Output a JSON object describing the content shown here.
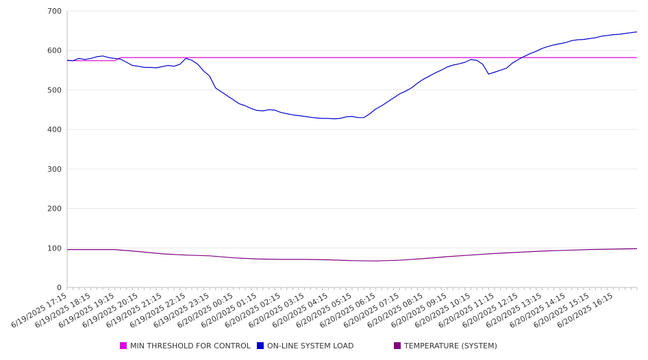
{
  "chart_data": {
    "type": "line",
    "ylim": [
      0,
      700
    ],
    "yticks": [
      0,
      100,
      200,
      300,
      400,
      500,
      600,
      700
    ],
    "xlim": [
      "6/19/2025 17:15",
      "6/20/2025 17:15"
    ],
    "xtick_labels": [
      "6/19/2025 17:15",
      "6/19/2025 18:15",
      "6/19/2025 19:15",
      "6/19/2025 20:15",
      "6/19/2025 21:15",
      "6/19/2025 22:15",
      "6/19/2025 23:15",
      "6/20/2025 00:15",
      "6/20/2025 01:15",
      "6/20/2025 02:15",
      "6/20/2025 03:15",
      "6/20/2025 04:15",
      "6/20/2025 05:15",
      "6/20/2025 06:15",
      "6/20/2025 07:15",
      "6/20/2025 08:15",
      "6/20/2025 09:15",
      "6/20/2025 10:15",
      "6/20/2025 11:15",
      "6/20/2025 12:15",
      "6/20/2025 13:15",
      "6/20/2025 14:15",
      "6/20/2025 15:15",
      "6/20/2025 16:15"
    ],
    "legend_position": "bottom",
    "grid": true,
    "series": [
      {
        "name": "MIN THRESHOLD FOR CONTROL",
        "color": "#e000e0",
        "x": [
          "6/19/2025 17:15",
          "6/19/2025 19:15",
          "6/19/2025 19:30",
          "6/20/2025 17:15"
        ],
        "values": [
          574,
          574,
          582,
          582
        ]
      },
      {
        "name": "ON-LINE SYSTEM LOAD",
        "color": "#0000cc",
        "x": [
          "6/19/2025 17:15",
          "6/19/2025 17:30",
          "6/19/2025 17:45",
          "6/19/2025 18:00",
          "6/19/2025 18:15",
          "6/19/2025 18:30",
          "6/19/2025 18:45",
          "6/19/2025 19:00",
          "6/19/2025 19:15",
          "6/19/2025 19:30",
          "6/19/2025 19:45",
          "6/19/2025 20:00",
          "6/19/2025 20:15",
          "6/19/2025 20:30",
          "6/19/2025 20:45",
          "6/19/2025 21:00",
          "6/19/2025 21:15",
          "6/19/2025 21:30",
          "6/19/2025 21:45",
          "6/19/2025 22:00",
          "6/19/2025 22:15",
          "6/19/2025 22:30",
          "6/19/2025 22:45",
          "6/19/2025 23:00",
          "6/19/2025 23:15",
          "6/19/2025 23:30",
          "6/19/2025 23:45",
          "6/20/2025 00:00",
          "6/20/2025 00:15",
          "6/20/2025 00:30",
          "6/20/2025 00:45",
          "6/20/2025 01:00",
          "6/20/2025 01:15",
          "6/20/2025 01:30",
          "6/20/2025 01:45",
          "6/20/2025 02:00",
          "6/20/2025 02:15",
          "6/20/2025 02:30",
          "6/20/2025 02:45",
          "6/20/2025 03:00",
          "6/20/2025 03:15",
          "6/20/2025 03:30",
          "6/20/2025 03:45",
          "6/20/2025 04:00",
          "6/20/2025 04:15",
          "6/20/2025 04:30",
          "6/20/2025 04:45",
          "6/20/2025 05:00",
          "6/20/2025 05:15",
          "6/20/2025 05:30",
          "6/20/2025 05:45",
          "6/20/2025 06:00",
          "6/20/2025 06:15",
          "6/20/2025 06:30",
          "6/20/2025 06:45",
          "6/20/2025 07:00",
          "6/20/2025 07:15",
          "6/20/2025 07:30",
          "6/20/2025 07:45",
          "6/20/2025 08:00",
          "6/20/2025 08:15",
          "6/20/2025 08:30",
          "6/20/2025 08:45",
          "6/20/2025 09:00",
          "6/20/2025 09:15",
          "6/20/2025 09:30",
          "6/20/2025 09:45",
          "6/20/2025 10:00",
          "6/20/2025 10:15",
          "6/20/2025 10:30",
          "6/20/2025 10:45",
          "6/20/2025 11:00",
          "6/20/2025 11:15",
          "6/20/2025 11:30",
          "6/20/2025 11:45",
          "6/20/2025 12:00",
          "6/20/2025 12:15",
          "6/20/2025 12:30",
          "6/20/2025 12:45",
          "6/20/2025 13:00",
          "6/20/2025 13:15",
          "6/20/2025 13:30",
          "6/20/2025 13:45",
          "6/20/2025 14:00",
          "6/20/2025 14:15",
          "6/20/2025 14:30",
          "6/20/2025 14:45",
          "6/20/2025 15:00",
          "6/20/2025 15:15",
          "6/20/2025 15:30",
          "6/20/2025 15:45",
          "6/20/2025 16:00",
          "6/20/2025 16:15",
          "6/20/2025 16:30",
          "6/20/2025 16:45",
          "6/20/2025 17:00",
          "6/20/2025 17:15"
        ],
        "values": [
          575,
          574,
          580,
          577,
          580,
          584,
          586,
          582,
          580,
          578,
          570,
          562,
          560,
          557,
          557,
          556,
          559,
          562,
          560,
          565,
          580,
          575,
          565,
          548,
          535,
          505,
          495,
          485,
          475,
          465,
          460,
          453,
          448,
          447,
          450,
          449,
          443,
          440,
          437,
          435,
          433,
          431,
          429,
          428,
          428,
          427,
          428,
          432,
          433,
          430,
          430,
          440,
          452,
          460,
          470,
          480,
          490,
          497,
          505,
          517,
          527,
          535,
          543,
          550,
          558,
          563,
          566,
          570,
          577,
          575,
          565,
          540,
          545,
          550,
          555,
          568,
          577,
          585,
          592,
          598,
          605,
          610,
          614,
          617,
          620,
          625,
          627,
          628,
          630,
          632,
          636,
          638,
          640,
          641,
          643,
          645,
          647
        ]
      },
      {
        "name": "TEMPERATURE (SYSTEM)",
        "color": "#800080",
        "x": [
          "6/19/2025 17:15",
          "6/19/2025 18:15",
          "6/19/2025 19:15",
          "6/19/2025 20:15",
          "6/19/2025 21:15",
          "6/19/2025 22:15",
          "6/19/2025 23:15",
          "6/20/2025 00:15",
          "6/20/2025 01:15",
          "6/20/2025 02:15",
          "6/20/2025 03:15",
          "6/20/2025 04:15",
          "6/20/2025 05:15",
          "6/20/2025 06:15",
          "6/20/2025 07:15",
          "6/20/2025 08:15",
          "6/20/2025 09:15",
          "6/20/2025 10:15",
          "6/20/2025 11:15",
          "6/20/2025 12:15",
          "6/20/2025 13:15",
          "6/20/2025 14:15",
          "6/20/2025 15:15",
          "6/20/2025 16:15",
          "6/20/2025 17:15"
        ],
        "values": [
          96,
          96,
          96,
          91,
          85,
          82,
          80,
          75,
          72,
          71,
          71,
          70,
          68,
          67,
          69,
          73,
          78,
          82,
          86,
          89,
          92,
          94,
          96,
          97,
          98
        ]
      }
    ]
  }
}
